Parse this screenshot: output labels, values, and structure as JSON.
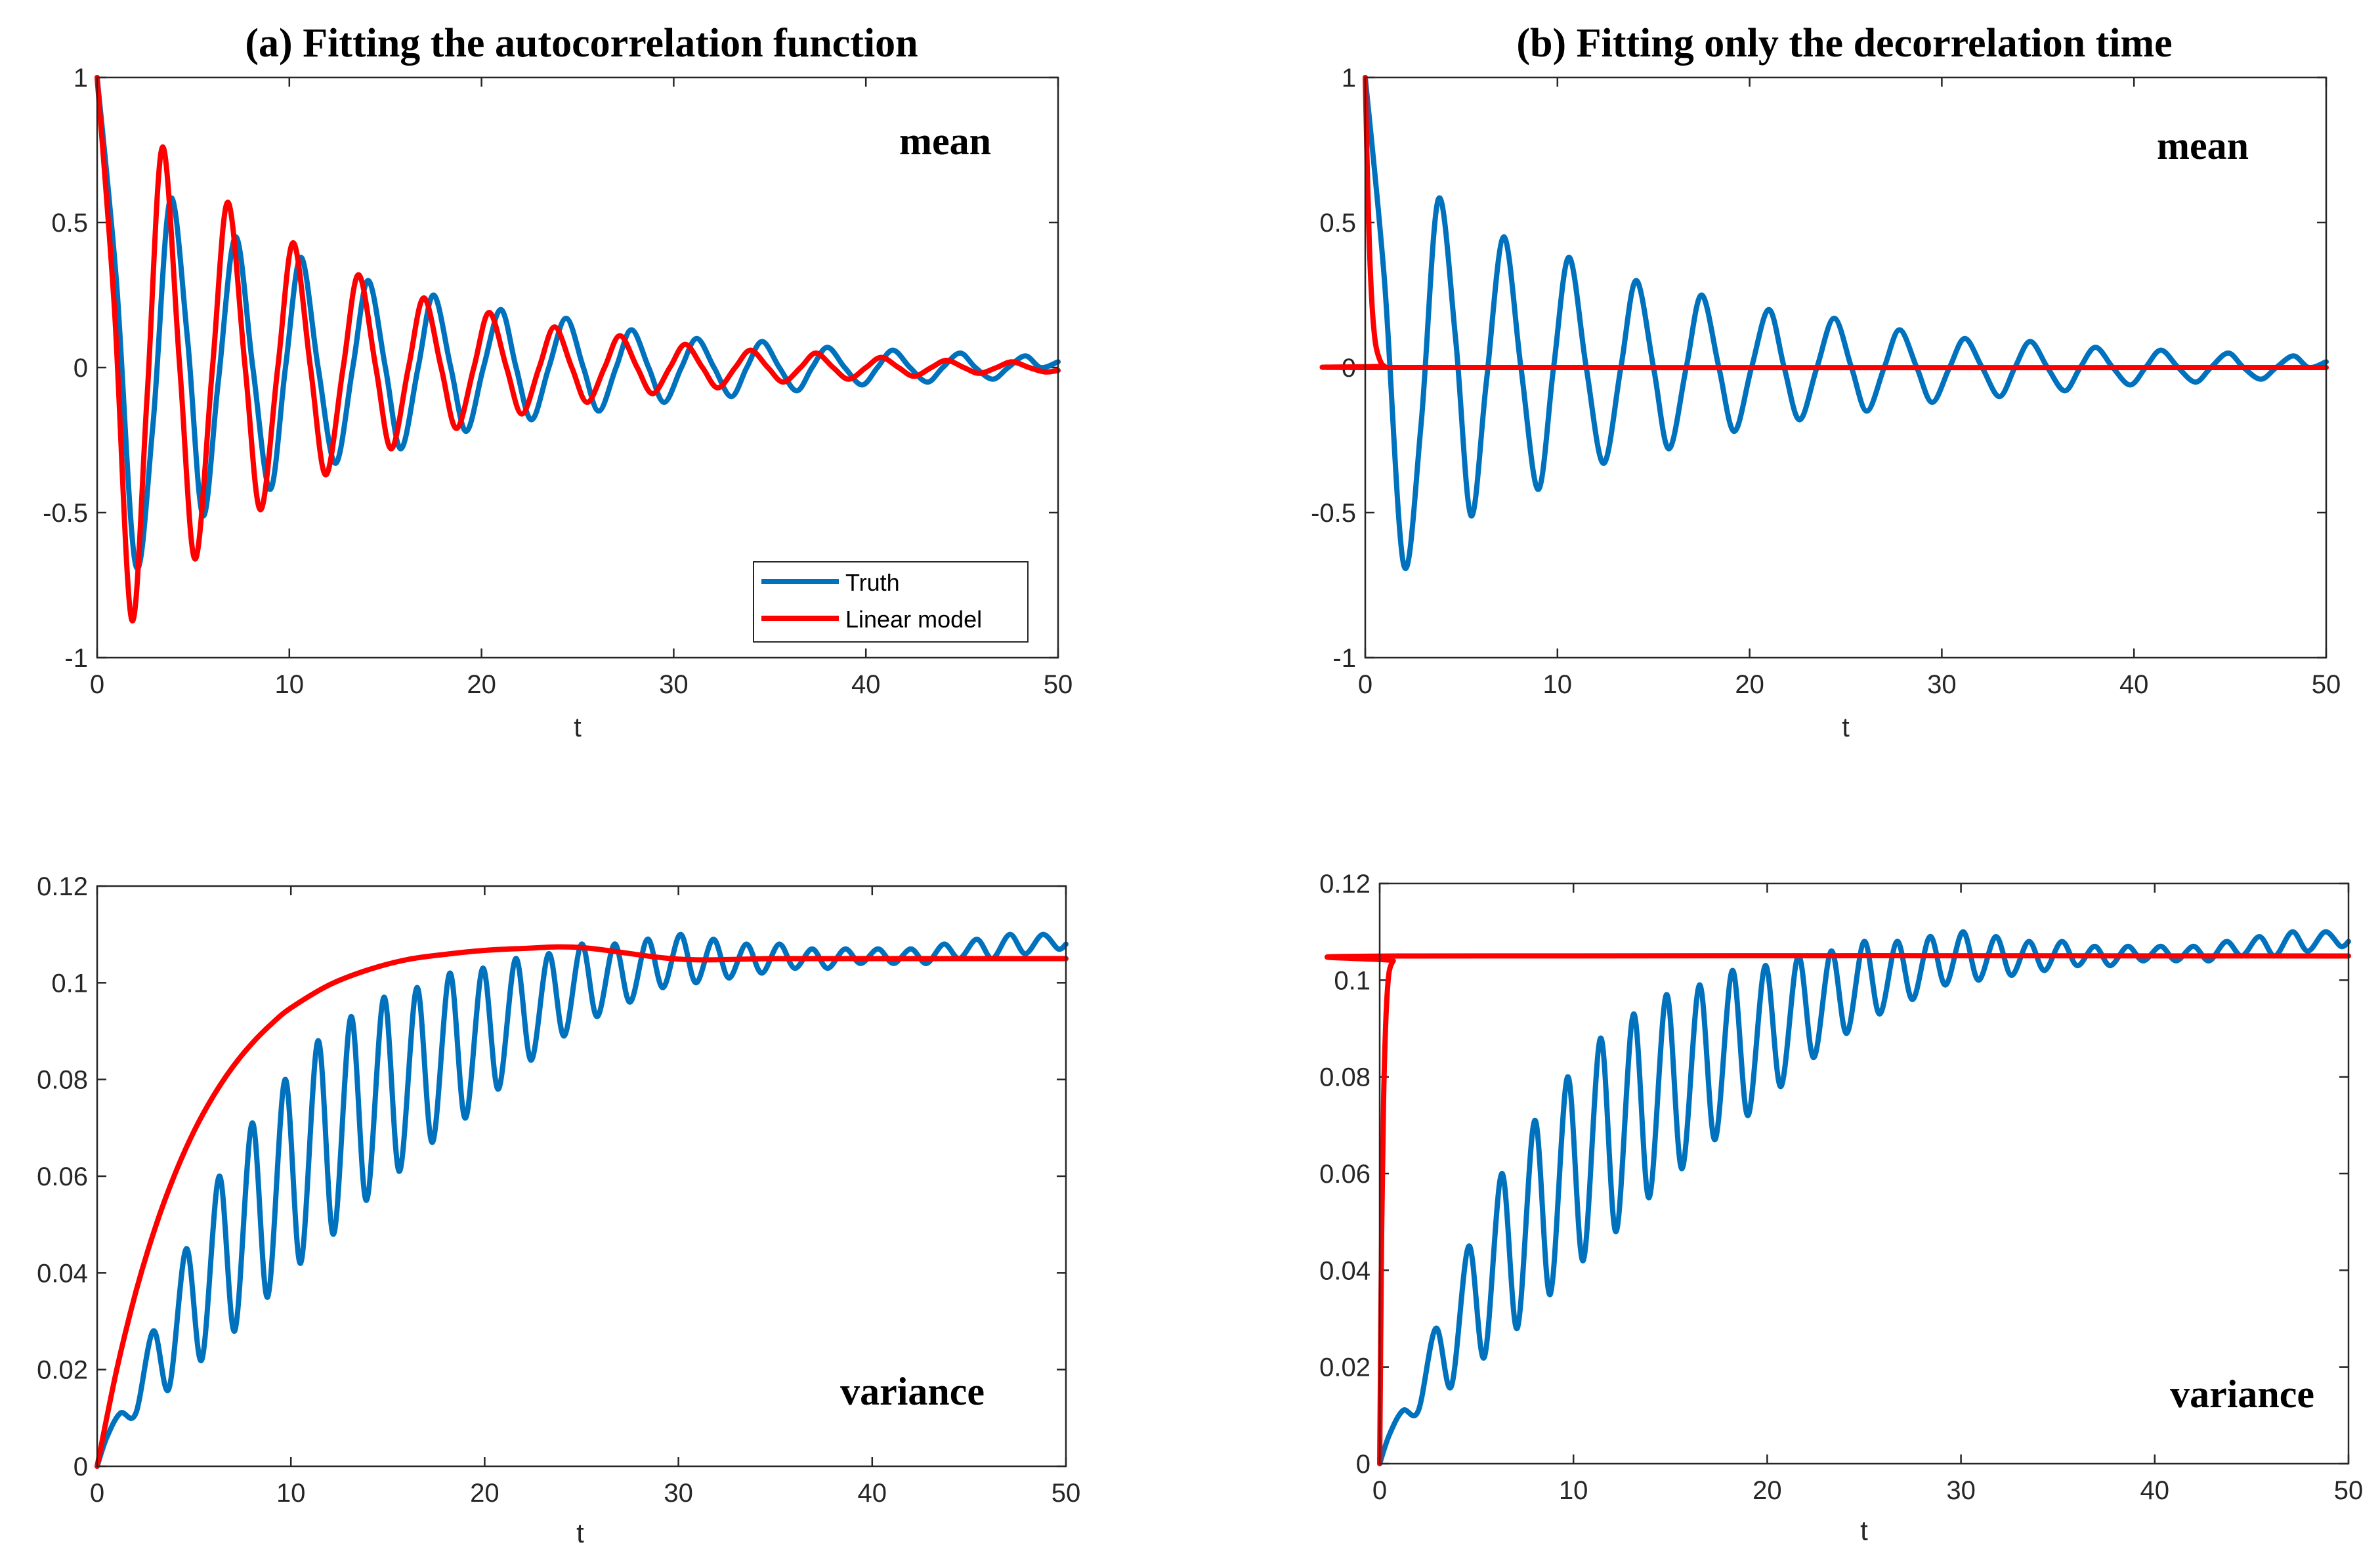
{
  "colors": {
    "truth": "#0072BD",
    "linear_model": "#FF0000",
    "axis": "#262626"
  },
  "legend": {
    "truth_label": "Truth",
    "model_label": "Linear model"
  },
  "chart_data": [
    {
      "id": "a-mean",
      "type": "line",
      "title": "(a) Fitting the autocorrelation function",
      "annotation": "mean",
      "xlabel": "t",
      "ylabel": "",
      "xlim": [
        0,
        50
      ],
      "ylim": [
        -1,
        1
      ],
      "xticks": [
        0,
        10,
        20,
        30,
        40,
        50
      ],
      "yticks": [
        -1,
        -0.5,
        0,
        0.5,
        1
      ],
      "ytick_labels": [
        "-1",
        "-0.5",
        "0",
        "0.5",
        "1"
      ],
      "legend_position": "bottom-right",
      "series": [
        {
          "name": "Truth",
          "color_key": "truth",
          "x": [
            0,
            1,
            2,
            2.9,
            3.8,
            4.7,
            5.5,
            6.3,
            7.2,
            8.1,
            9.0,
            9.8,
            10.6,
            11.5,
            12.4,
            13.3,
            14.1,
            15.0,
            15.8,
            16.7,
            17.5,
            18.4,
            19.2,
            20.1,
            21.0,
            21.8,
            22.6,
            23.5,
            24.4,
            25.3,
            26.1,
            27.0,
            27.8,
            28.7,
            29.5,
            30.4,
            31.2,
            32.1,
            33.0,
            33.8,
            34.6,
            35.5,
            36.4,
            37.2,
            38.0,
            38.9,
            39.8,
            40.6,
            41.4,
            42.3,
            43.2,
            44.0,
            44.9,
            45.7,
            46.6,
            47.4,
            48.3,
            49.1,
            50
          ],
          "y": [
            1,
            0.3,
            -0.68,
            -0.2,
            0.58,
            0.1,
            -0.51,
            -0.05,
            0.45,
            0.0,
            -0.42,
            0.0,
            0.38,
            0.0,
            -0.33,
            0.0,
            0.3,
            0.0,
            -0.28,
            0.0,
            0.25,
            0.0,
            -0.22,
            0.0,
            0.2,
            0.0,
            -0.18,
            0.0,
            0.17,
            0.0,
            -0.15,
            0.0,
            0.13,
            0.0,
            -0.12,
            0.0,
            0.1,
            0.0,
            -0.1,
            0.0,
            0.09,
            0.0,
            -0.08,
            0.0,
            0.07,
            0.0,
            -0.06,
            0.0,
            0.06,
            0.0,
            -0.05,
            0.0,
            0.05,
            0.0,
            -0.04,
            0.0,
            0.04,
            0.0,
            0.02
          ]
        },
        {
          "name": "Linear model",
          "color_key": "linear_model",
          "x": [
            0,
            0.9,
            1.8,
            2.6,
            3.4,
            4.3,
            5.1,
            6.0,
            6.8,
            7.7,
            8.5,
            9.4,
            10.2,
            11.1,
            11.9,
            12.8,
            13.6,
            14.5,
            15.3,
            16.2,
            17.0,
            17.9,
            18.7,
            19.6,
            20.4,
            21.3,
            22.1,
            23.0,
            23.8,
            24.7,
            25.5,
            26.4,
            27.2,
            28.1,
            28.9,
            29.8,
            30.6,
            31.5,
            32.3,
            33.2,
            34.0,
            34.9,
            35.7,
            36.6,
            37.4,
            38.3,
            39.1,
            40.0,
            40.8,
            41.7,
            42.5,
            43.4,
            44.2,
            45.1,
            45.9,
            46.8,
            47.6,
            48.5,
            49.3,
            50
          ],
          "y": [
            1,
            0.2,
            -0.87,
            -0.1,
            0.76,
            0.0,
            -0.66,
            0.0,
            0.57,
            0.0,
            -0.49,
            0.0,
            0.43,
            0.0,
            -0.37,
            0.0,
            0.32,
            0.0,
            -0.28,
            0.0,
            0.24,
            0.0,
            -0.21,
            0.0,
            0.19,
            0.0,
            -0.16,
            0.0,
            0.14,
            0.0,
            -0.12,
            0.0,
            0.11,
            0.0,
            -0.09,
            0.0,
            0.08,
            0.0,
            -0.07,
            0.0,
            0.06,
            0.0,
            -0.05,
            0.0,
            0.05,
            0.0,
            -0.04,
            0.0,
            0.035,
            0.0,
            -0.03,
            0.0,
            0.025,
            0.0,
            -0.02,
            0.0,
            0.02,
            0.0,
            -0.015,
            -0.01
          ]
        }
      ]
    },
    {
      "id": "b-mean",
      "type": "line",
      "title": "(b) Fitting only the decorrelation time",
      "annotation": "mean",
      "xlabel": "t",
      "ylabel": "",
      "xlim": [
        0,
        50
      ],
      "ylim": [
        -1,
        1
      ],
      "xticks": [
        0,
        10,
        20,
        30,
        40,
        50
      ],
      "yticks": [
        -1,
        -0.5,
        0,
        0.5,
        1
      ],
      "ytick_labels": [
        "-1",
        "-0.5",
        "0",
        "0.5",
        "1"
      ],
      "series": [
        {
          "name": "Truth",
          "color_key": "truth",
          "x": [
            0,
            1,
            2,
            2.9,
            3.8,
            4.7,
            5.5,
            6.3,
            7.2,
            8.1,
            9.0,
            9.8,
            10.6,
            11.5,
            12.4,
            13.3,
            14.1,
            15.0,
            15.8,
            16.7,
            17.5,
            18.4,
            19.2,
            20.1,
            21.0,
            21.8,
            22.6,
            23.5,
            24.4,
            25.3,
            26.1,
            27.0,
            27.8,
            28.7,
            29.5,
            30.4,
            31.2,
            32.1,
            33.0,
            33.8,
            34.6,
            35.5,
            36.4,
            37.2,
            38.0,
            38.9,
            39.8,
            40.6,
            41.4,
            42.3,
            43.2,
            44.0,
            44.9,
            45.7,
            46.6,
            47.4,
            48.3,
            49.1,
            50
          ],
          "y": [
            1,
            0.3,
            -0.68,
            -0.2,
            0.58,
            0.1,
            -0.51,
            -0.05,
            0.45,
            0.0,
            -0.42,
            0.0,
            0.38,
            0.0,
            -0.33,
            0.0,
            0.3,
            0.0,
            -0.28,
            0.0,
            0.25,
            0.0,
            -0.22,
            0.0,
            0.2,
            0.0,
            -0.18,
            0.0,
            0.17,
            0.0,
            -0.15,
            0.0,
            0.13,
            0.0,
            -0.12,
            0.0,
            0.1,
            0.0,
            -0.1,
            0.0,
            0.09,
            0.0,
            -0.08,
            0.0,
            0.07,
            0.0,
            -0.06,
            0.0,
            0.06,
            0.0,
            -0.05,
            0.0,
            0.05,
            0.0,
            -0.04,
            0.0,
            0.04,
            0.0,
            0.02
          ]
        },
        {
          "name": "Linear model",
          "color_key": "linear_model",
          "x": [
            0,
            0.1,
            0.2,
            0.3,
            0.4,
            0.5,
            0.6,
            0.8,
            1.0,
            1.5,
            50
          ],
          "y": [
            1,
            0.7,
            0.45,
            0.28,
            0.17,
            0.1,
            0.06,
            0.02,
            0.005,
            0,
            0
          ]
        }
      ]
    },
    {
      "id": "a-variance",
      "type": "line",
      "title": "",
      "annotation": "variance",
      "xlabel": "t",
      "ylabel": "",
      "xlim": [
        0,
        50
      ],
      "ylim": [
        0,
        0.12
      ],
      "xticks": [
        0,
        10,
        20,
        30,
        40,
        50
      ],
      "yticks": [
        0,
        0.02,
        0.04,
        0.06,
        0.08,
        0.1,
        0.12
      ],
      "ytick_labels": [
        "0",
        "0.02",
        "0.04",
        "0.06",
        "0.08",
        "0.1",
        "0.12"
      ],
      "series": [
        {
          "name": "Truth",
          "color_key": "truth",
          "x": [
            0,
            0.5,
            1.2,
            2.0,
            2.9,
            3.7,
            4.6,
            5.4,
            6.3,
            7.1,
            8.0,
            8.8,
            9.7,
            10.5,
            11.4,
            12.2,
            13.1,
            13.9,
            14.8,
            15.6,
            16.5,
            17.3,
            18.2,
            19.0,
            19.9,
            20.7,
            21.6,
            22.4,
            23.3,
            24.1,
            25.0,
            25.8,
            26.7,
            27.5,
            28.4,
            29.2,
            30.1,
            30.9,
            31.8,
            32.6,
            33.5,
            34.3,
            35.2,
            36.0,
            36.9,
            37.7,
            38.6,
            39.4,
            40.3,
            41.1,
            42.0,
            42.8,
            43.7,
            44.5,
            45.4,
            46.2,
            47.1,
            47.9,
            48.8,
            49.6,
            50
          ],
          "y": [
            0,
            0.006,
            0.011,
            0.011,
            0.028,
            0.016,
            0.045,
            0.022,
            0.06,
            0.028,
            0.071,
            0.035,
            0.08,
            0.042,
            0.088,
            0.048,
            0.093,
            0.055,
            0.097,
            0.061,
            0.099,
            0.067,
            0.102,
            0.072,
            0.103,
            0.078,
            0.105,
            0.084,
            0.106,
            0.089,
            0.108,
            0.093,
            0.108,
            0.096,
            0.109,
            0.099,
            0.11,
            0.1,
            0.109,
            0.101,
            0.108,
            0.102,
            0.108,
            0.103,
            0.107,
            0.103,
            0.107,
            0.104,
            0.107,
            0.104,
            0.107,
            0.104,
            0.108,
            0.105,
            0.109,
            0.105,
            0.11,
            0.106,
            0.11,
            0.107,
            0.108
          ]
        },
        {
          "name": "Linear model",
          "color_key": "linear_model",
          "x": [
            0,
            1,
            2,
            3,
            4,
            5,
            6,
            7,
            8,
            9,
            10,
            12,
            14,
            16,
            18,
            20,
            22,
            25,
            30,
            35,
            40,
            45,
            50
          ],
          "y": [
            0,
            0.0198,
            0.0361,
            0.0494,
            0.0603,
            0.0693,
            0.0766,
            0.0826,
            0.0875,
            0.0915,
            0.0948,
            0.0996,
            0.1027,
            0.1048,
            0.1059,
            0.1067,
            0.1071,
            0.1073,
            0.1049,
            0.105,
            0.105,
            0.105,
            0.105
          ]
        }
      ]
    },
    {
      "id": "b-variance",
      "type": "line",
      "title": "",
      "annotation": "variance",
      "xlabel": "t",
      "ylabel": "",
      "xlim": [
        0,
        50
      ],
      "ylim": [
        0,
        0.12
      ],
      "xticks": [
        0,
        10,
        20,
        30,
        40,
        50
      ],
      "yticks": [
        0,
        0.02,
        0.04,
        0.06,
        0.08,
        0.1,
        0.12
      ],
      "ytick_labels": [
        "0",
        "0.02",
        "0.04",
        "0.06",
        "0.08",
        "0.1",
        "0.12"
      ],
      "series": [
        {
          "name": "Truth",
          "color_key": "truth",
          "x": [
            0,
            0.5,
            1.2,
            2.0,
            2.9,
            3.7,
            4.6,
            5.4,
            6.3,
            7.1,
            8.0,
            8.8,
            9.7,
            10.5,
            11.4,
            12.2,
            13.1,
            13.9,
            14.8,
            15.6,
            16.5,
            17.3,
            18.2,
            19.0,
            19.9,
            20.7,
            21.6,
            22.4,
            23.3,
            24.1,
            25.0,
            25.8,
            26.7,
            27.5,
            28.4,
            29.2,
            30.1,
            30.9,
            31.8,
            32.6,
            33.5,
            34.3,
            35.2,
            36.0,
            36.9,
            37.7,
            38.6,
            39.4,
            40.3,
            41.1,
            42.0,
            42.8,
            43.7,
            44.5,
            45.4,
            46.2,
            47.1,
            47.9,
            48.8,
            49.6,
            50
          ],
          "y": [
            0,
            0.006,
            0.011,
            0.011,
            0.028,
            0.016,
            0.045,
            0.022,
            0.06,
            0.028,
            0.071,
            0.035,
            0.08,
            0.042,
            0.088,
            0.048,
            0.093,
            0.055,
            0.097,
            0.061,
            0.099,
            0.067,
            0.102,
            0.072,
            0.103,
            0.078,
            0.105,
            0.084,
            0.106,
            0.089,
            0.108,
            0.093,
            0.108,
            0.096,
            0.109,
            0.099,
            0.11,
            0.1,
            0.109,
            0.101,
            0.108,
            0.102,
            0.108,
            0.103,
            0.107,
            0.103,
            0.107,
            0.104,
            0.107,
            0.104,
            0.107,
            0.104,
            0.108,
            0.105,
            0.109,
            0.105,
            0.11,
            0.106,
            0.11,
            0.107,
            0.108
          ]
        },
        {
          "name": "Linear model",
          "color_key": "linear_model",
          "x": [
            0,
            0.1,
            0.2,
            0.3,
            0.4,
            0.5,
            0.7,
            1.0,
            50
          ],
          "y": [
            0,
            0.048,
            0.075,
            0.09,
            0.098,
            0.102,
            0.104,
            0.105,
            0.105
          ]
        }
      ]
    }
  ]
}
